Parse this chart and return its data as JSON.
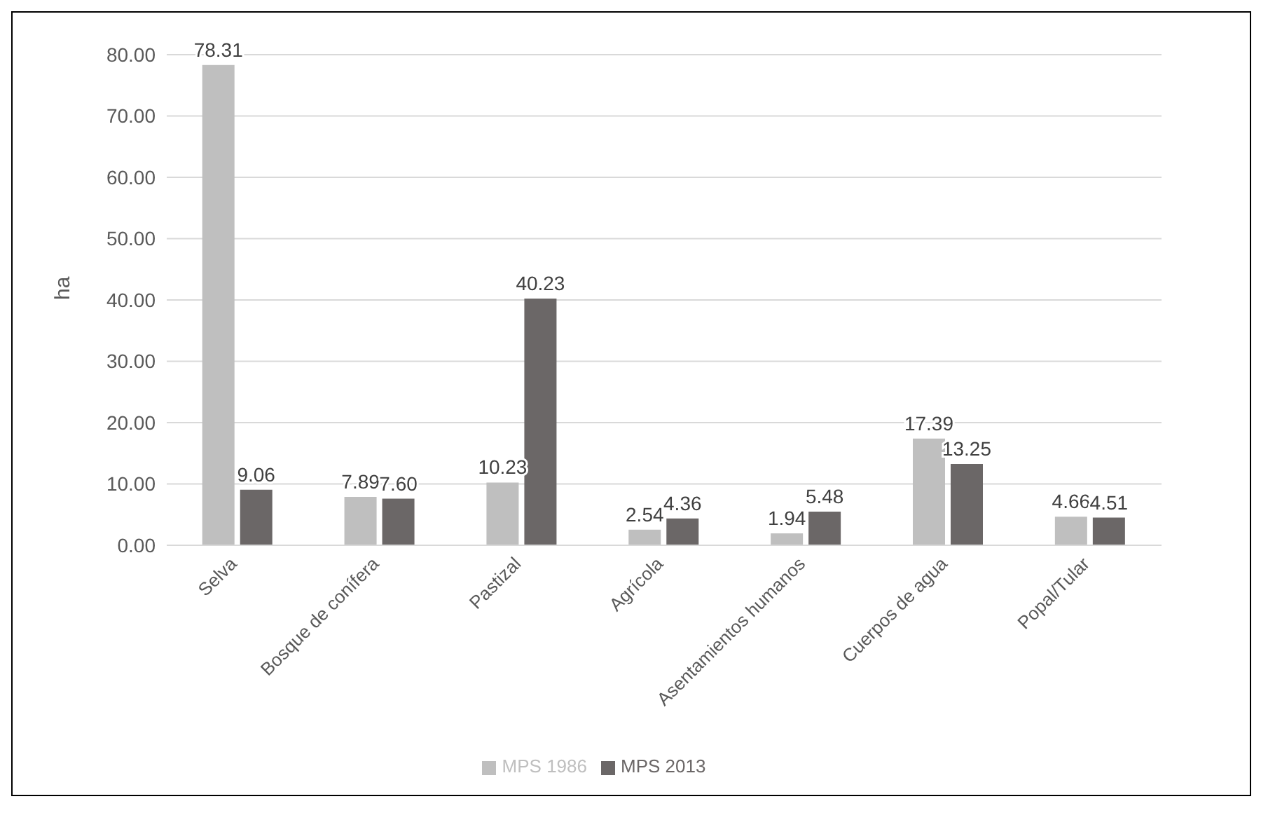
{
  "chart_data": {
    "type": "bar",
    "ylabel": "ha",
    "categories": [
      "Selva",
      "Bosque de conífera",
      "Pastizal",
      "Agrícola",
      "Asentamientos humanos",
      "Cuerpos de agua",
      "Popal/Tular"
    ],
    "series": [
      {
        "name": "MPS 1986",
        "color": "#bfbfbf",
        "values": [
          78.31,
          7.89,
          10.23,
          2.54,
          1.94,
          17.39,
          4.66
        ],
        "value_labels": [
          "78.31",
          "7.89",
          "10.23",
          "2.54",
          "1.94",
          "17.39",
          "4.66"
        ]
      },
      {
        "name": "MPS 2013",
        "color": "#6b6767",
        "values": [
          9.06,
          7.6,
          40.23,
          4.36,
          5.48,
          13.25,
          4.51
        ],
        "value_labels": [
          "9.06",
          "7.60",
          "40.23",
          "4.36",
          "5.48",
          "13.25",
          "4.51"
        ]
      }
    ],
    "ylim": [
      0,
      80
    ],
    "yticks": [
      {
        "value": 0,
        "label": "0.00"
      },
      {
        "value": 10,
        "label": "10.00"
      },
      {
        "value": 20,
        "label": "20.00"
      },
      {
        "value": 30,
        "label": "30.00"
      },
      {
        "value": 40,
        "label": "40.00"
      },
      {
        "value": 50,
        "label": "50.00"
      },
      {
        "value": 60,
        "label": "60.00"
      },
      {
        "value": 70,
        "label": "70.00"
      },
      {
        "value": 80,
        "label": "80.00"
      }
    ],
    "grid": "y",
    "legend": "bottom"
  }
}
